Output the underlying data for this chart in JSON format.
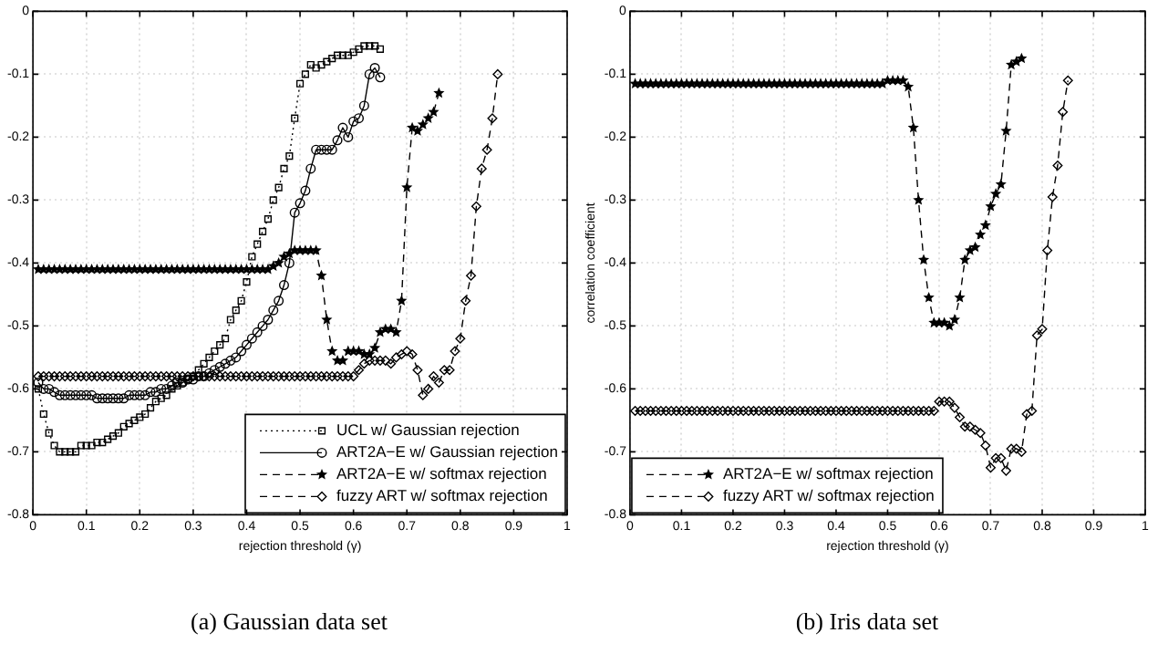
{
  "chart_data": [
    {
      "type": "line",
      "title": "(a) Gaussian data set",
      "xlabel": "rejection threshold (γ)",
      "xlim": [
        0,
        1
      ],
      "xticks": [
        0,
        0.1,
        0.2,
        0.3,
        0.4,
        0.5,
        0.6,
        0.7,
        0.8,
        0.9,
        1
      ],
      "ylim": [
        -0.8,
        0
      ],
      "yticks": [
        -0.8,
        -0.7,
        -0.6,
        -0.5,
        -0.4,
        -0.3,
        -0.2,
        -0.1,
        0
      ],
      "grid": true,
      "legend": "bottom right",
      "series": [
        {
          "name": "UCL w/ Gaussian rejection",
          "color": "#000000",
          "marker": "square",
          "line_style": "dotted",
          "x": [
            0.01,
            0.02,
            0.03,
            0.04,
            0.05,
            0.06,
            0.07,
            0.08,
            0.09,
            0.1,
            0.11,
            0.12,
            0.13,
            0.14,
            0.15,
            0.16,
            0.17,
            0.18,
            0.19,
            0.2,
            0.21,
            0.22,
            0.23,
            0.24,
            0.25,
            0.26,
            0.27,
            0.28,
            0.29,
            0.3,
            0.31,
            0.32,
            0.33,
            0.34,
            0.35,
            0.36,
            0.37,
            0.38,
            0.39,
            0.4,
            0.41,
            0.42,
            0.43,
            0.44,
            0.45,
            0.46,
            0.47,
            0.48,
            0.49,
            0.5,
            0.51,
            0.52,
            0.53,
            0.54,
            0.55,
            0.56,
            0.57,
            0.58,
            0.59,
            0.6,
            0.61,
            0.62,
            0.63,
            0.64,
            0.65
          ],
          "values": [
            -0.6,
            -0.64,
            -0.67,
            -0.69,
            -0.7,
            -0.7,
            -0.7,
            -0.7,
            -0.69,
            -0.69,
            -0.69,
            -0.685,
            -0.685,
            -0.68,
            -0.675,
            -0.67,
            -0.66,
            -0.655,
            -0.65,
            -0.645,
            -0.64,
            -0.63,
            -0.62,
            -0.615,
            -0.61,
            -0.6,
            -0.595,
            -0.59,
            -0.585,
            -0.58,
            -0.57,
            -0.56,
            -0.55,
            -0.54,
            -0.53,
            -0.52,
            -0.49,
            -0.475,
            -0.46,
            -0.43,
            -0.39,
            -0.37,
            -0.35,
            -0.33,
            -0.3,
            -0.28,
            -0.25,
            -0.23,
            -0.17,
            -0.115,
            -0.1,
            -0.085,
            -0.09,
            -0.085,
            -0.08,
            -0.075,
            -0.07,
            -0.07,
            -0.07,
            -0.065,
            -0.06,
            -0.055,
            -0.055,
            -0.055,
            -0.06
          ]
        },
        {
          "name": "ART2A−E w/ Gaussian rejection",
          "color": "#000000",
          "marker": "circle",
          "line_style": "solid",
          "x": [
            0.01,
            0.02,
            0.03,
            0.04,
            0.05,
            0.06,
            0.07,
            0.08,
            0.09,
            0.1,
            0.11,
            0.12,
            0.13,
            0.14,
            0.15,
            0.16,
            0.17,
            0.18,
            0.19,
            0.2,
            0.21,
            0.22,
            0.23,
            0.24,
            0.25,
            0.26,
            0.27,
            0.28,
            0.29,
            0.3,
            0.31,
            0.32,
            0.33,
            0.34,
            0.35,
            0.36,
            0.37,
            0.38,
            0.39,
            0.4,
            0.41,
            0.42,
            0.43,
            0.44,
            0.45,
            0.46,
            0.47,
            0.48,
            0.49,
            0.5,
            0.51,
            0.52,
            0.53,
            0.54,
            0.55,
            0.56,
            0.57,
            0.58,
            0.59,
            0.6,
            0.61,
            0.62,
            0.63,
            0.64,
            0.65
          ],
          "values": [
            -0.59,
            -0.6,
            -0.6,
            -0.605,
            -0.61,
            -0.61,
            -0.61,
            -0.61,
            -0.61,
            -0.61,
            -0.61,
            -0.615,
            -0.615,
            -0.615,
            -0.615,
            -0.615,
            -0.615,
            -0.61,
            -0.61,
            -0.61,
            -0.61,
            -0.605,
            -0.605,
            -0.6,
            -0.6,
            -0.595,
            -0.59,
            -0.59,
            -0.585,
            -0.585,
            -0.58,
            -0.58,
            -0.575,
            -0.57,
            -0.565,
            -0.56,
            -0.555,
            -0.55,
            -0.54,
            -0.53,
            -0.52,
            -0.51,
            -0.5,
            -0.49,
            -0.475,
            -0.46,
            -0.435,
            -0.4,
            -0.32,
            -0.305,
            -0.285,
            -0.25,
            -0.22,
            -0.22,
            -0.22,
            -0.22,
            -0.205,
            -0.185,
            -0.2,
            -0.175,
            -0.17,
            -0.15,
            -0.1,
            -0.09,
            -0.105
          ]
        },
        {
          "name": "ART2A−E w/ softmax rejection",
          "color": "#000000",
          "marker": "star",
          "line_style": "dashed",
          "x": [
            0.01,
            0.02,
            0.03,
            0.04,
            0.05,
            0.06,
            0.07,
            0.08,
            0.09,
            0.1,
            0.11,
            0.12,
            0.13,
            0.14,
            0.15,
            0.16,
            0.17,
            0.18,
            0.19,
            0.2,
            0.21,
            0.22,
            0.23,
            0.24,
            0.25,
            0.26,
            0.27,
            0.28,
            0.29,
            0.3,
            0.31,
            0.32,
            0.33,
            0.34,
            0.35,
            0.36,
            0.37,
            0.38,
            0.39,
            0.4,
            0.41,
            0.42,
            0.43,
            0.44,
            0.45,
            0.46,
            0.47,
            0.48,
            0.49,
            0.5,
            0.51,
            0.52,
            0.53,
            0.54,
            0.55,
            0.56,
            0.57,
            0.58,
            0.59,
            0.6,
            0.61,
            0.62,
            0.63,
            0.64,
            0.65,
            0.66,
            0.67,
            0.68,
            0.69,
            0.7,
            0.71,
            0.72,
            0.73,
            0.74,
            0.75,
            0.76
          ],
          "values": [
            -0.41,
            -0.41,
            -0.41,
            -0.41,
            -0.41,
            -0.41,
            -0.41,
            -0.41,
            -0.41,
            -0.41,
            -0.41,
            -0.41,
            -0.41,
            -0.41,
            -0.41,
            -0.41,
            -0.41,
            -0.41,
            -0.41,
            -0.41,
            -0.41,
            -0.41,
            -0.41,
            -0.41,
            -0.41,
            -0.41,
            -0.41,
            -0.41,
            -0.41,
            -0.41,
            -0.41,
            -0.41,
            -0.41,
            -0.41,
            -0.41,
            -0.41,
            -0.41,
            -0.41,
            -0.41,
            -0.41,
            -0.41,
            -0.41,
            -0.41,
            -0.41,
            -0.405,
            -0.4,
            -0.39,
            -0.385,
            -0.38,
            -0.38,
            -0.38,
            -0.38,
            -0.38,
            -0.42,
            -0.49,
            -0.54,
            -0.555,
            -0.555,
            -0.54,
            -0.54,
            -0.54,
            -0.545,
            -0.545,
            -0.535,
            -0.51,
            -0.505,
            -0.505,
            -0.51,
            -0.46,
            -0.28,
            -0.185,
            -0.19,
            -0.18,
            -0.17,
            -0.16,
            -0.13
          ]
        },
        {
          "name": "fuzzy ART w/ softmax rejection",
          "color": "#000000",
          "marker": "diamond",
          "line_style": "dashed",
          "x": [
            0.01,
            0.02,
            0.03,
            0.04,
            0.05,
            0.06,
            0.07,
            0.08,
            0.09,
            0.1,
            0.11,
            0.12,
            0.13,
            0.14,
            0.15,
            0.16,
            0.17,
            0.18,
            0.19,
            0.2,
            0.21,
            0.22,
            0.23,
            0.24,
            0.25,
            0.26,
            0.27,
            0.28,
            0.29,
            0.3,
            0.31,
            0.32,
            0.33,
            0.34,
            0.35,
            0.36,
            0.37,
            0.38,
            0.39,
            0.4,
            0.41,
            0.42,
            0.43,
            0.44,
            0.45,
            0.46,
            0.47,
            0.48,
            0.49,
            0.5,
            0.51,
            0.52,
            0.53,
            0.54,
            0.55,
            0.56,
            0.57,
            0.58,
            0.59,
            0.6,
            0.61,
            0.62,
            0.63,
            0.64,
            0.65,
            0.66,
            0.67,
            0.68,
            0.69,
            0.7,
            0.71,
            0.72,
            0.73,
            0.74,
            0.75,
            0.76,
            0.77,
            0.78,
            0.79,
            0.8,
            0.81,
            0.82,
            0.83,
            0.84,
            0.85,
            0.86,
            0.87
          ],
          "values": [
            -0.58,
            -0.58,
            -0.58,
            -0.58,
            -0.58,
            -0.58,
            -0.58,
            -0.58,
            -0.58,
            -0.58,
            -0.58,
            -0.58,
            -0.58,
            -0.58,
            -0.58,
            -0.58,
            -0.58,
            -0.58,
            -0.58,
            -0.58,
            -0.58,
            -0.58,
            -0.58,
            -0.58,
            -0.58,
            -0.58,
            -0.58,
            -0.58,
            -0.58,
            -0.58,
            -0.58,
            -0.58,
            -0.58,
            -0.58,
            -0.58,
            -0.58,
            -0.58,
            -0.58,
            -0.58,
            -0.58,
            -0.58,
            -0.58,
            -0.58,
            -0.58,
            -0.58,
            -0.58,
            -0.58,
            -0.58,
            -0.58,
            -0.58,
            -0.58,
            -0.58,
            -0.58,
            -0.58,
            -0.58,
            -0.58,
            -0.58,
            -0.58,
            -0.58,
            -0.58,
            -0.57,
            -0.56,
            -0.555,
            -0.555,
            -0.555,
            -0.555,
            -0.56,
            -0.55,
            -0.545,
            -0.54,
            -0.545,
            -0.57,
            -0.61,
            -0.6,
            -0.58,
            -0.59,
            -0.57,
            -0.57,
            -0.54,
            -0.52,
            -0.46,
            -0.42,
            -0.31,
            -0.25,
            -0.22,
            -0.17,
            -0.1
          ]
        }
      ]
    },
    {
      "type": "line",
      "title": "(b) Iris data set",
      "xlabel": "rejection threshold (γ)",
      "ylabel": "correlation coefficient",
      "xlim": [
        0,
        1
      ],
      "xticks": [
        0,
        0.1,
        0.2,
        0.3,
        0.4,
        0.5,
        0.6,
        0.7,
        0.8,
        0.9,
        1
      ],
      "ylim": [
        -0.8,
        0
      ],
      "yticks": [
        -0.8,
        -0.7,
        -0.6,
        -0.5,
        -0.4,
        -0.3,
        -0.2,
        -0.1,
        0
      ],
      "grid": true,
      "legend": "bottom left",
      "series": [
        {
          "name": "ART2A−E w/ softmax rejection",
          "color": "#000000",
          "marker": "star",
          "line_style": "dashed",
          "x": [
            0.01,
            0.02,
            0.03,
            0.04,
            0.05,
            0.06,
            0.07,
            0.08,
            0.09,
            0.1,
            0.11,
            0.12,
            0.13,
            0.14,
            0.15,
            0.16,
            0.17,
            0.18,
            0.19,
            0.2,
            0.21,
            0.22,
            0.23,
            0.24,
            0.25,
            0.26,
            0.27,
            0.28,
            0.29,
            0.3,
            0.31,
            0.32,
            0.33,
            0.34,
            0.35,
            0.36,
            0.37,
            0.38,
            0.39,
            0.4,
            0.41,
            0.42,
            0.43,
            0.44,
            0.45,
            0.46,
            0.47,
            0.48,
            0.49,
            0.5,
            0.51,
            0.52,
            0.53,
            0.54,
            0.55,
            0.56,
            0.57,
            0.58,
            0.59,
            0.6,
            0.61,
            0.62,
            0.63,
            0.64,
            0.65,
            0.66,
            0.67,
            0.68,
            0.69,
            0.7,
            0.71,
            0.72,
            0.73,
            0.74,
            0.75,
            0.76
          ],
          "values": [
            -0.115,
            -0.115,
            -0.115,
            -0.115,
            -0.115,
            -0.115,
            -0.115,
            -0.115,
            -0.115,
            -0.115,
            -0.115,
            -0.115,
            -0.115,
            -0.115,
            -0.115,
            -0.115,
            -0.115,
            -0.115,
            -0.115,
            -0.115,
            -0.115,
            -0.115,
            -0.115,
            -0.115,
            -0.115,
            -0.115,
            -0.115,
            -0.115,
            -0.115,
            -0.115,
            -0.115,
            -0.115,
            -0.115,
            -0.115,
            -0.115,
            -0.115,
            -0.115,
            -0.115,
            -0.115,
            -0.115,
            -0.115,
            -0.115,
            -0.115,
            -0.115,
            -0.115,
            -0.115,
            -0.115,
            -0.115,
            -0.115,
            -0.11,
            -0.11,
            -0.11,
            -0.11,
            -0.12,
            -0.185,
            -0.3,
            -0.395,
            -0.455,
            -0.495,
            -0.495,
            -0.495,
            -0.5,
            -0.49,
            -0.455,
            -0.395,
            -0.38,
            -0.375,
            -0.355,
            -0.34,
            -0.31,
            -0.29,
            -0.275,
            -0.19,
            -0.085,
            -0.08,
            -0.075
          ]
        },
        {
          "name": "fuzzy ART w/ softmax rejection",
          "color": "#000000",
          "marker": "diamond",
          "line_style": "dashed",
          "x": [
            0.01,
            0.02,
            0.03,
            0.04,
            0.05,
            0.06,
            0.07,
            0.08,
            0.09,
            0.1,
            0.11,
            0.12,
            0.13,
            0.14,
            0.15,
            0.16,
            0.17,
            0.18,
            0.19,
            0.2,
            0.21,
            0.22,
            0.23,
            0.24,
            0.25,
            0.26,
            0.27,
            0.28,
            0.29,
            0.3,
            0.31,
            0.32,
            0.33,
            0.34,
            0.35,
            0.36,
            0.37,
            0.38,
            0.39,
            0.4,
            0.41,
            0.42,
            0.43,
            0.44,
            0.45,
            0.46,
            0.47,
            0.48,
            0.49,
            0.5,
            0.51,
            0.52,
            0.53,
            0.54,
            0.55,
            0.56,
            0.57,
            0.58,
            0.59,
            0.6,
            0.61,
            0.62,
            0.63,
            0.64,
            0.65,
            0.66,
            0.67,
            0.68,
            0.69,
            0.7,
            0.71,
            0.72,
            0.73,
            0.74,
            0.75,
            0.76,
            0.77,
            0.78,
            0.79,
            0.8,
            0.81,
            0.82,
            0.83,
            0.84,
            0.85
          ],
          "values": [
            -0.635,
            -0.635,
            -0.635,
            -0.635,
            -0.635,
            -0.635,
            -0.635,
            -0.635,
            -0.635,
            -0.635,
            -0.635,
            -0.635,
            -0.635,
            -0.635,
            -0.635,
            -0.635,
            -0.635,
            -0.635,
            -0.635,
            -0.635,
            -0.635,
            -0.635,
            -0.635,
            -0.635,
            -0.635,
            -0.635,
            -0.635,
            -0.635,
            -0.635,
            -0.635,
            -0.635,
            -0.635,
            -0.635,
            -0.635,
            -0.635,
            -0.635,
            -0.635,
            -0.635,
            -0.635,
            -0.635,
            -0.635,
            -0.635,
            -0.635,
            -0.635,
            -0.635,
            -0.635,
            -0.635,
            -0.635,
            -0.635,
            -0.635,
            -0.635,
            -0.635,
            -0.635,
            -0.635,
            -0.635,
            -0.635,
            -0.635,
            -0.635,
            -0.635,
            -0.62,
            -0.62,
            -0.62,
            -0.63,
            -0.645,
            -0.66,
            -0.66,
            -0.665,
            -0.67,
            -0.69,
            -0.725,
            -0.71,
            -0.71,
            -0.73,
            -0.695,
            -0.695,
            -0.7,
            -0.64,
            -0.635,
            -0.515,
            -0.505,
            -0.38,
            -0.295,
            -0.245,
            -0.16,
            -0.11
          ]
        }
      ]
    }
  ]
}
